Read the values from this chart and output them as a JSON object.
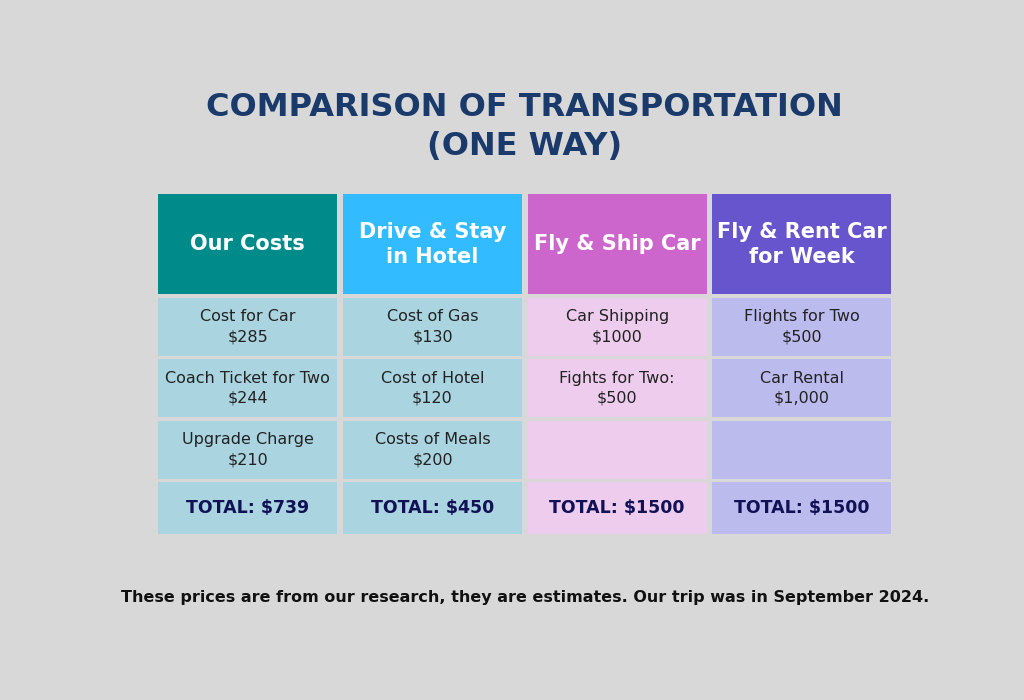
{
  "title": "COMPARISON OF TRANSPORTATION\n(ONE WAY)",
  "title_color": "#1a3a6b",
  "background_color": "#d8d8d8",
  "footnote": "These prices are from our research, they are estimates. Our trip was in September 2024.",
  "columns": [
    {
      "header": "Our Costs",
      "header_bg": "#008b8b",
      "header_text_color": "#ffffff",
      "row_bg": "#aad4e0",
      "total_bg": "#aad4e0",
      "items": [
        {
          "label": "Cost for Car",
          "value": "$285"
        },
        {
          "label": "Coach Ticket for Two",
          "value": "$244"
        },
        {
          "label": "Upgrade Charge",
          "value": "$210"
        }
      ],
      "total": "TOTAL: $739"
    },
    {
      "header": "Drive & Stay\nin Hotel",
      "header_bg": "#33bbff",
      "header_text_color": "#ffffff",
      "row_bg": "#aad4e0",
      "total_bg": "#aad4e0",
      "items": [
        {
          "label": "Cost of Gas",
          "value": "$130"
        },
        {
          "label": "Cost of Hotel",
          "value": "$120"
        },
        {
          "label": "Costs of Meals",
          "value": "$200"
        }
      ],
      "total": "TOTAL: $450"
    },
    {
      "header": "Fly & Ship Car",
      "header_bg": "#cc66cc",
      "header_text_color": "#ffffff",
      "row_bg": "#eeccee",
      "total_bg": "#eeccee",
      "items": [
        {
          "label": "Car Shipping",
          "value": "$1000"
        },
        {
          "label": "Fights for Two:",
          "value": "$500"
        },
        {
          "label": "",
          "value": ""
        }
      ],
      "total": "TOTAL: $1500"
    },
    {
      "header": "Fly & Rent Car\nfor Week",
      "header_bg": "#6655cc",
      "header_text_color": "#ffffff",
      "row_bg": "#bbbbee",
      "total_bg": "#bbbbee",
      "items": [
        {
          "label": "Flights for Two",
          "value": "$500"
        },
        {
          "label": "Car Rental",
          "value": "$1,000"
        },
        {
          "label": "",
          "value": ""
        }
      ],
      "total": "TOTAL: $1500"
    }
  ]
}
